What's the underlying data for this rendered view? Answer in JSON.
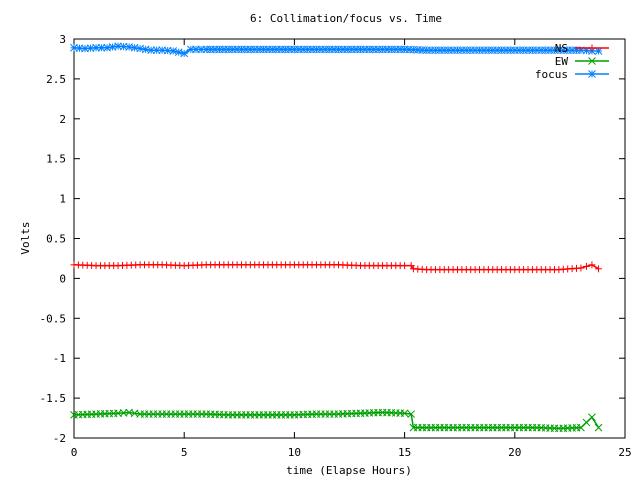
{
  "chart_data": {
    "type": "line",
    "title": "6: Collimation/focus vs. Time",
    "xlabel": "time (Elapse Hours)",
    "ylabel": "Volts",
    "xlim": [
      0,
      25
    ],
    "ylim": [
      -2,
      3
    ],
    "xticks": [
      0,
      5,
      10,
      15,
      20,
      25
    ],
    "yticks": [
      -2,
      -1.5,
      -1,
      -0.5,
      0,
      0.5,
      1,
      1.5,
      2,
      2.5,
      3
    ],
    "grid": false,
    "legend_position": "top-right",
    "series": [
      {
        "name": "NS",
        "color": "#ff0000",
        "marker": "plus",
        "x": [
          0,
          1,
          2,
          3,
          4,
          5,
          6,
          7,
          8,
          9,
          10,
          11,
          12,
          13,
          14,
          15,
          15.3,
          15.4,
          16,
          17,
          18,
          19,
          20,
          21,
          22,
          23,
          23.5,
          23.8
        ],
        "y": [
          0.17,
          0.16,
          0.16,
          0.17,
          0.17,
          0.16,
          0.17,
          0.17,
          0.17,
          0.17,
          0.17,
          0.17,
          0.17,
          0.16,
          0.16,
          0.16,
          0.16,
          0.12,
          0.11,
          0.11,
          0.11,
          0.11,
          0.11,
          0.11,
          0.11,
          0.13,
          0.17,
          0.12
        ]
      },
      {
        "name": "EW",
        "color": "#00a000",
        "marker": "cross",
        "x": [
          0,
          1,
          2,
          2.5,
          3,
          4,
          5,
          6,
          7,
          8,
          9,
          10,
          11,
          12,
          13,
          14,
          15,
          15.3,
          15.4,
          16,
          17,
          18,
          19,
          20,
          21,
          22,
          23,
          23.5,
          23.8
        ],
        "y": [
          -1.71,
          -1.7,
          -1.69,
          -1.68,
          -1.7,
          -1.7,
          -1.7,
          -1.7,
          -1.71,
          -1.71,
          -1.71,
          -1.71,
          -1.7,
          -1.7,
          -1.69,
          -1.68,
          -1.69,
          -1.7,
          -1.87,
          -1.87,
          -1.87,
          -1.87,
          -1.87,
          -1.87,
          -1.87,
          -1.88,
          -1.87,
          -1.74,
          -1.87
        ]
      },
      {
        "name": "focus",
        "color": "#0080ff",
        "marker": "star",
        "x": [
          0,
          0.5,
          1,
          1.5,
          2,
          2.5,
          3,
          3.5,
          4,
          4.5,
          5,
          5.3,
          6,
          7,
          8,
          9,
          10,
          11,
          12,
          13,
          14,
          15,
          16,
          17,
          18,
          19,
          20,
          21,
          22,
          23,
          23.5,
          23.8
        ],
        "y": [
          2.89,
          2.88,
          2.89,
          2.89,
          2.91,
          2.9,
          2.88,
          2.86,
          2.86,
          2.85,
          2.82,
          2.87,
          2.87,
          2.87,
          2.87,
          2.87,
          2.87,
          2.87,
          2.87,
          2.87,
          2.87,
          2.87,
          2.86,
          2.86,
          2.86,
          2.86,
          2.86,
          2.86,
          2.86,
          2.86,
          2.85,
          2.85
        ]
      }
    ]
  }
}
